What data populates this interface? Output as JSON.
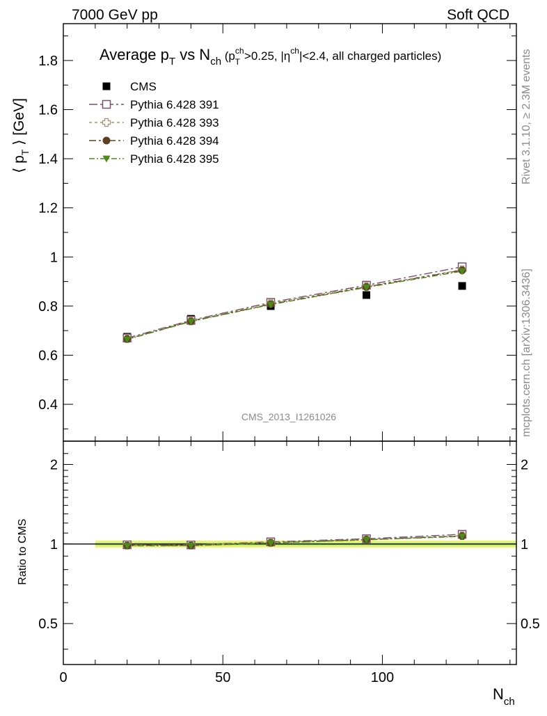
{
  "header": {
    "left": "7000 GeV pp",
    "right": "Soft QCD"
  },
  "side_labels": {
    "rivet": "Rivet 3.1.10, ≥ 2.3M events",
    "mcplots": "mcplots.cern.ch [arXiv:1306.3436]"
  },
  "colors": {
    "cms": "#000000",
    "p391": "#7b4f6a",
    "p393": "#a89070",
    "p394": "#5c4126",
    "p395": "#4d8a1a",
    "band_yellow": "#f2f26a",
    "band_green": "#b8f07a"
  },
  "chart_data": [
    {
      "type": "line",
      "title": {
        "main": "Average p",
        "main_sub": "T",
        "mid": " vs N",
        "mid_sub": "ch",
        "cut_open": " (p",
        "cut_sup": "ch",
        "cut_sub": "T",
        "cut_mid": ">0.25, |η",
        "cut_sup2": "ch",
        "cut_end": "|<2.4, all charged particles)"
      },
      "ylabel": {
        "open": "⟨ p",
        "sub": "T",
        "close": " ⟩ [GeV]"
      },
      "analysis_tag": "CMS_2013_I1261026",
      "xlim": [
        0,
        142
      ],
      "ylim": [
        0.25,
        1.95
      ],
      "yticks": [
        0.4,
        0.6,
        0.8,
        1,
        1.2,
        1.4,
        1.6,
        1.8
      ],
      "ytick_labels": [
        "0.4",
        "0.6",
        "0.8",
        "1",
        "1.2",
        "1.4",
        "1.6",
        "1.8"
      ],
      "legend_position": "top-left",
      "series": [
        {
          "name": "CMS",
          "key": "cms",
          "marker": "filled-square",
          "x": [
            20,
            40,
            65,
            95,
            125
          ],
          "y": [
            0.675,
            0.748,
            0.8,
            0.845,
            0.882
          ]
        },
        {
          "name": "Pythia 6.428 391",
          "key": "p391",
          "marker": "open-square",
          "x": [
            20,
            40,
            65,
            95,
            125
          ],
          "y": [
            0.67,
            0.742,
            0.815,
            0.885,
            0.96
          ]
        },
        {
          "name": "Pythia 6.428 393",
          "key": "p393",
          "marker": "open-cross",
          "x": [
            20,
            40,
            65,
            95,
            125
          ],
          "y": [
            0.668,
            0.74,
            0.812,
            0.88,
            0.948
          ]
        },
        {
          "name": "Pythia 6.428 394",
          "key": "p394",
          "marker": "filled-circle",
          "x": [
            20,
            40,
            65,
            95,
            125
          ],
          "y": [
            0.666,
            0.738,
            0.808,
            0.878,
            0.946
          ]
        },
        {
          "name": "Pythia 6.428 395",
          "key": "p395",
          "marker": "filled-triangle-down",
          "x": [
            20,
            40,
            65,
            95,
            125
          ],
          "y": [
            0.664,
            0.737,
            0.806,
            0.876,
            0.942
          ]
        }
      ]
    },
    {
      "type": "line",
      "ylabel": "Ratio to CMS",
      "xlabel": {
        "main": "N",
        "sub": "ch"
      },
      "xlim": [
        0,
        142
      ],
      "ylim": [
        0.35,
        2.45
      ],
      "log_y": true,
      "xticks": [
        0,
        50,
        100
      ],
      "xtick_labels": [
        "0",
        "50",
        "100"
      ],
      "yticks": [
        0.5,
        1,
        2
      ],
      "ytick_labels": [
        "0.5",
        "1",
        "2"
      ],
      "band": {
        "x": [
          10,
          142
        ],
        "inner": [
          0.985,
          1.015
        ],
        "outer": [
          0.97,
          1.03
        ]
      },
      "series": [
        {
          "name": "Pythia 6.428 391",
          "key": "p391",
          "marker": "open-square",
          "x": [
            20,
            40,
            65,
            95,
            125
          ],
          "y": [
            0.993,
            0.992,
            1.019,
            1.047,
            1.088
          ]
        },
        {
          "name": "Pythia 6.428 393",
          "key": "p393",
          "marker": "open-cross",
          "x": [
            20,
            40,
            65,
            95,
            125
          ],
          "y": [
            0.99,
            0.99,
            1.015,
            1.041,
            1.075
          ]
        },
        {
          "name": "Pythia 6.428 394",
          "key": "p394",
          "marker": "filled-circle",
          "x": [
            20,
            40,
            65,
            95,
            125
          ],
          "y": [
            0.987,
            0.987,
            1.01,
            1.039,
            1.072
          ]
        },
        {
          "name": "Pythia 6.428 395",
          "key": "p395",
          "marker": "filled-triangle-down",
          "x": [
            20,
            40,
            65,
            95,
            125
          ],
          "y": [
            0.984,
            0.985,
            1.008,
            1.037,
            1.068
          ]
        }
      ]
    }
  ]
}
